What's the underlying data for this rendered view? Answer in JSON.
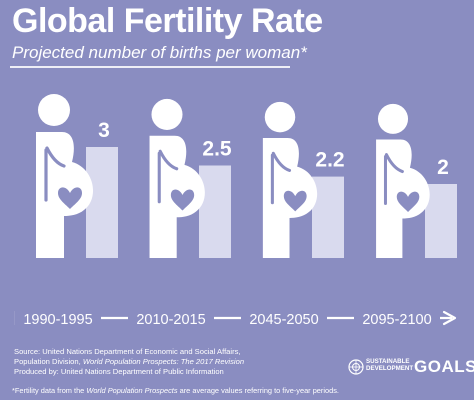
{
  "title": "Global Fertility Rate",
  "subtitle": "Projected number of births per woman*",
  "chart_data": {
    "type": "bar",
    "categories": [
      "1990-1995",
      "2010-2015",
      "2045-2050",
      "2095-2100"
    ],
    "values": [
      3,
      2.5,
      2.2,
      2
    ],
    "value_labels": [
      "3",
      "2.5",
      "2.2",
      "2"
    ],
    "title": "Global Fertility Rate",
    "subtitle": "Projected number of births per woman*",
    "xlabel": "",
    "ylabel": "",
    "ylim": [
      0,
      3
    ],
    "grid": false,
    "legend": "none"
  },
  "source": {
    "line1": "Source: United Nations Department of Economic and Social Affairs,",
    "line2_prefix": "Population Division, ",
    "line2_italic": "World Population Prospects: The 2017 Revision",
    "line3": "Produced by: United Nations Department of Public Information"
  },
  "footnote": {
    "prefix": "*Fertility data from the ",
    "italic": "World Population Prospects",
    "suffix": " are average values referring to five-year periods."
  },
  "logo": {
    "line1": "SUSTAINABLE",
    "line2": "DEVELOPMENT",
    "goals": "GOALS"
  },
  "colors": {
    "background": "#8a8dc1",
    "bar": "#d9daee",
    "figure": "#ffffff",
    "figure_outline": "#8a8dc1",
    "heart": "#8a8dc1",
    "text": "#ffffff"
  },
  "icons": [
    "pregnant-woman-icon",
    "heart-icon",
    "timeline-arrow-icon",
    "un-emblem-icon"
  ]
}
